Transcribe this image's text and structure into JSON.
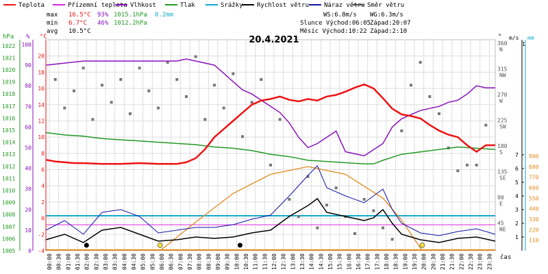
{
  "chart_data": {
    "type": "line",
    "title": "20.4.2021",
    "legend": [
      {
        "label": "Teplota",
        "color": "#ee1111"
      },
      {
        "label": "Přízemní teplota",
        "color": "#dd22dd"
      },
      {
        "label": "Vlhkost",
        "color": "#8811bb"
      },
      {
        "label": "Tlak",
        "color": "#229922"
      },
      {
        "label": "Srážky",
        "color": "#11aacc"
      },
      {
        "label": "Rychlost větru",
        "color": "#000000"
      },
      {
        "label": "Náraz větru",
        "color": "#1111aa"
      },
      {
        "label": "Směr větru",
        "color": "#555555"
      }
    ],
    "stats": {
      "max": {
        "label": "max",
        "temp": "16.5°C",
        "hum": "93%",
        "press": "1015.1hPa",
        "rain": "0.2mm"
      },
      "min": {
        "label": "min",
        "temp": "6.7°C",
        "hum": "46%",
        "press": "1012.2hPa"
      },
      "avg": {
        "label": "avg",
        "temp": "10.5°C"
      }
    },
    "info": {
      "ws": "WS:6.8m/s",
      "wg": "WG:6.3m/s",
      "sun": "Slunce Východ:06:05",
      "sun_set": "Západ:20:07",
      "moon": "Měsíc  Východ:10:22",
      "moon_set": "Západ:2:10"
    },
    "axes": {
      "hpa_label": "hPa",
      "pct_label": "%",
      "c_label": "°C",
      "deg_label": "°",
      "ms_label": "m/s",
      "mm_label": "mm",
      "x_label": "čas",
      "hpa_ticks": [
        "1022",
        "1021",
        "1020",
        "1019",
        "1018",
        "1017",
        "1016",
        "1015",
        "1014",
        "1013",
        "1012",
        "1011",
        "1010",
        "1009",
        "1008",
        "1007",
        "1006",
        "1005"
      ],
      "pct_ticks": [
        "100",
        "90",
        "80",
        "70",
        "60",
        "50",
        "40",
        "30",
        "20",
        "10",
        "0"
      ],
      "c_ticks": [
        "20",
        "18",
        "16",
        "14",
        "12",
        "10",
        "8",
        "6",
        "4",
        "2",
        "0",
        "-2",
        "-4"
      ],
      "dir_ticks": [
        {
          "v": 360,
          "deg": "360",
          "dir": "N"
        },
        {
          "v": 315,
          "deg": "315",
          "dir": "NW"
        },
        {
          "v": 270,
          "deg": "270",
          "dir": "W"
        },
        {
          "v": 225,
          "deg": "225",
          "dir": "SW"
        },
        {
          "v": 180,
          "deg": "180",
          "dir": "S"
        },
        {
          "v": 135,
          "deg": "135",
          "dir": "SE"
        },
        {
          "v": 90,
          "deg": "90",
          "dir": "E"
        },
        {
          "v": 45,
          "deg": "45",
          "dir": "NE"
        }
      ],
      "ms_ticks": [
        "7",
        "6",
        "5",
        "4",
        "3",
        "2",
        "1"
      ],
      "ms_top": "1",
      "solar_ticks": [
        "990",
        "880",
        "770",
        "660",
        "550",
        "440",
        "330",
        "220",
        "110"
      ],
      "time_ticks": [
        "00:00",
        "00:30",
        "01:00",
        "01:30",
        "02:00",
        "02:30",
        "03:00",
        "03:30",
        "04:00",
        "04:30",
        "05:00",
        "05:30",
        "06:00",
        "06:30",
        "07:00",
        "07:30",
        "08:00",
        "08:30",
        "09:00",
        "09:30",
        "10:00",
        "10:30",
        "11:00",
        "11:30",
        "12:00",
        "12:30",
        "13:00",
        "13:30",
        "14:00",
        "14:30",
        "15:00",
        "15:30",
        "16:00",
        "16:30",
        "17:00",
        "17:30",
        "18:00",
        "18:30",
        "19:00",
        "19:30",
        "20:00",
        "20:30",
        "21:00",
        "21:30",
        "22:00",
        "22:30",
        "23:00",
        "23:30"
      ]
    },
    "ranges": {
      "temp": [
        -4,
        22
      ],
      "humidity": [
        0,
        100
      ],
      "pressure": [
        1005,
        1022.5
      ],
      "wind": [
        0,
        7
      ],
      "direction": [
        0,
        360
      ],
      "solar": [
        0,
        990
      ],
      "hours": [
        0,
        24
      ]
    },
    "series": {
      "temperature": {
        "name": "Teplota",
        "unit": "°C",
        "points": [
          [
            0,
            7.2
          ],
          [
            0.5,
            7.0
          ],
          [
            1,
            6.9
          ],
          [
            1.5,
            6.8
          ],
          [
            2,
            6.8
          ],
          [
            3,
            6.7
          ],
          [
            4,
            6.7
          ],
          [
            5,
            6.8
          ],
          [
            6,
            6.7
          ],
          [
            7,
            6.7
          ],
          [
            7.5,
            6.9
          ],
          [
            8,
            7.4
          ],
          [
            8.5,
            8.5
          ],
          [
            9,
            10.0
          ],
          [
            9.5,
            11.0
          ],
          [
            10,
            12.0
          ],
          [
            10.5,
            13.0
          ],
          [
            11,
            14.0
          ],
          [
            11.5,
            14.5
          ],
          [
            12,
            14.7
          ],
          [
            12.5,
            15.0
          ],
          [
            13,
            14.6
          ],
          [
            13.5,
            14.4
          ],
          [
            14,
            14.7
          ],
          [
            14.5,
            14.5
          ],
          [
            15,
            15.0
          ],
          [
            15.5,
            15.2
          ],
          [
            16,
            15.6
          ],
          [
            16.5,
            16.1
          ],
          [
            17,
            16.5
          ],
          [
            17.5,
            16.0
          ],
          [
            18,
            14.8
          ],
          [
            18.5,
            13.5
          ],
          [
            19,
            12.8
          ],
          [
            19.5,
            12.6
          ],
          [
            20,
            12.3
          ],
          [
            20.5,
            11.5
          ],
          [
            21,
            10.8
          ],
          [
            21.5,
            10.3
          ],
          [
            22,
            10.0
          ],
          [
            22.5,
            9.0
          ],
          [
            23,
            8.2
          ],
          [
            23.5,
            9.0
          ],
          [
            24,
            9.0
          ]
        ]
      },
      "humidity": {
        "name": "Vlhkost",
        "unit": "%",
        "points": [
          [
            0,
            90
          ],
          [
            1,
            91
          ],
          [
            2,
            92
          ],
          [
            3,
            92
          ],
          [
            4,
            92
          ],
          [
            5,
            92
          ],
          [
            6,
            92
          ],
          [
            7,
            92
          ],
          [
            7.5,
            93
          ],
          [
            8,
            92
          ],
          [
            9,
            90
          ],
          [
            9.5,
            86
          ],
          [
            10,
            82
          ],
          [
            10.5,
            78
          ],
          [
            11,
            76
          ],
          [
            11.5,
            73
          ],
          [
            12,
            70
          ],
          [
            12.5,
            67
          ],
          [
            13,
            62
          ],
          [
            13.5,
            55
          ],
          [
            14,
            50
          ],
          [
            14.5,
            52
          ],
          [
            15,
            55
          ],
          [
            15.5,
            58
          ],
          [
            16,
            48
          ],
          [
            16.5,
            47
          ],
          [
            17,
            46
          ],
          [
            17.5,
            49
          ],
          [
            18,
            52
          ],
          [
            18.5,
            60
          ],
          [
            19,
            64
          ],
          [
            19.5,
            66
          ],
          [
            20,
            68
          ],
          [
            20.5,
            69
          ],
          [
            21,
            70
          ],
          [
            21.5,
            72
          ],
          [
            22,
            73
          ],
          [
            22.5,
            76
          ],
          [
            23,
            80
          ],
          [
            23.5,
            79
          ],
          [
            24,
            79
          ]
        ]
      },
      "pressure": {
        "name": "Tlak",
        "unit": "hPa",
        "points": [
          [
            0,
            1014.8
          ],
          [
            1,
            1014.6
          ],
          [
            2,
            1014.5
          ],
          [
            3,
            1014.3
          ],
          [
            4,
            1014.2
          ],
          [
            5,
            1014.1
          ],
          [
            6,
            1014.0
          ],
          [
            7,
            1013.9
          ],
          [
            8,
            1013.8
          ],
          [
            9,
            1013.6
          ],
          [
            10,
            1013.5
          ],
          [
            11,
            1013.3
          ],
          [
            12,
            1013.0
          ],
          [
            13,
            1012.8
          ],
          [
            14,
            1012.5
          ],
          [
            15,
            1012.4
          ],
          [
            16,
            1012.3
          ],
          [
            17,
            1012.2
          ],
          [
            17.5,
            1012.2
          ],
          [
            18,
            1012.5
          ],
          [
            19,
            1013.0
          ],
          [
            20,
            1013.2
          ],
          [
            21,
            1013.4
          ],
          [
            22,
            1013.6
          ],
          [
            23,
            1013.5
          ],
          [
            24,
            1013.4
          ]
        ]
      },
      "ground_temperature": {
        "name": "Přízemní teplota",
        "unit": "°C",
        "points": [
          [
            0,
            -0.8
          ],
          [
            24,
            -0.8
          ]
        ]
      },
      "precipitation": {
        "name": "Srážky",
        "unit": "mm",
        "points": [
          [
            0,
            0.2
          ],
          [
            24,
            0.2
          ]
        ]
      },
      "solar": {
        "points": [
          [
            6.1,
            0
          ],
          [
            8,
            300
          ],
          [
            10,
            600
          ],
          [
            12,
            800
          ],
          [
            14,
            880
          ],
          [
            16,
            800
          ],
          [
            18,
            550
          ],
          [
            19,
            320
          ],
          [
            20.1,
            0
          ]
        ]
      },
      "wind_speed": {
        "name": "Rychlost větru",
        "unit": "m/s",
        "points": [
          [
            0,
            0.8
          ],
          [
            1,
            1.2
          ],
          [
            2,
            0.6
          ],
          [
            3,
            1.5
          ],
          [
            4,
            1.7
          ],
          [
            5,
            1.2
          ],
          [
            6,
            0.7
          ],
          [
            7,
            0.8
          ],
          [
            8,
            1.0
          ],
          [
            9,
            0.9
          ],
          [
            10,
            1.0
          ],
          [
            11,
            1.3
          ],
          [
            12,
            1.5
          ],
          [
            13,
            2.5
          ],
          [
            14,
            3.3
          ],
          [
            14.5,
            3.8
          ],
          [
            15,
            2.8
          ],
          [
            16,
            2.5
          ],
          [
            17,
            2.2
          ],
          [
            17.5,
            2.4
          ],
          [
            18,
            3.0
          ],
          [
            18.5,
            2.0
          ],
          [
            19,
            1.2
          ],
          [
            20,
            0.8
          ],
          [
            21,
            0.6
          ],
          [
            22,
            0.9
          ],
          [
            23,
            1.0
          ],
          [
            24,
            0.7
          ]
        ]
      },
      "wind_gust": {
        "name": "Náraz větru",
        "unit": "m/s",
        "points": [
          [
            0,
            1.5
          ],
          [
            1,
            2.2
          ],
          [
            2,
            1.2
          ],
          [
            3,
            2.8
          ],
          [
            4,
            3.0
          ],
          [
            5,
            2.5
          ],
          [
            6,
            1.3
          ],
          [
            7,
            1.5
          ],
          [
            8,
            1.7
          ],
          [
            9,
            1.7
          ],
          [
            10,
            1.9
          ],
          [
            11,
            2.3
          ],
          [
            12,
            2.6
          ],
          [
            13,
            4.0
          ],
          [
            14,
            5.5
          ],
          [
            14.5,
            6.2
          ],
          [
            15,
            4.6
          ],
          [
            16,
            4.0
          ],
          [
            17,
            3.5
          ],
          [
            17.5,
            4.0
          ],
          [
            18,
            4.5
          ],
          [
            18.5,
            3.0
          ],
          [
            19,
            2.0
          ],
          [
            20,
            1.3
          ],
          [
            21,
            1.1
          ],
          [
            22,
            1.4
          ],
          [
            23,
            1.6
          ],
          [
            24,
            1.2
          ]
        ]
      },
      "wind_direction": {
        "name": "Směr větru",
        "unit": "°",
        "points": [
          [
            0.5,
            300
          ],
          [
            1,
            250
          ],
          [
            1.5,
            280
          ],
          [
            2,
            320
          ],
          [
            2.5,
            230
          ],
          [
            3,
            290
          ],
          [
            3.5,
            260
          ],
          [
            4,
            300
          ],
          [
            4.5,
            240
          ],
          [
            5,
            320
          ],
          [
            5.5,
            280
          ],
          [
            6,
            250
          ],
          [
            6.5,
            330
          ],
          [
            7,
            300
          ],
          [
            7.5,
            270
          ],
          [
            8,
            340
          ],
          [
            8.5,
            230
          ],
          [
            9,
            290
          ],
          [
            9.5,
            250
          ],
          [
            10,
            310
          ],
          [
            10.5,
            200
          ],
          [
            11,
            260
          ],
          [
            11.5,
            300
          ],
          [
            12,
            150
          ],
          [
            12.5,
            230
          ],
          [
            13,
            90
          ],
          [
            13.5,
            60
          ],
          [
            14,
            130
          ],
          [
            14.5,
            40
          ],
          [
            15,
            80
          ],
          [
            15.5,
            110
          ],
          [
            16,
            60
          ],
          [
            16.5,
            30
          ],
          [
            17,
            90
          ],
          [
            17.5,
            70
          ],
          [
            18,
            40
          ],
          [
            18.5,
            20
          ],
          [
            19,
            210
          ],
          [
            19.5,
            290
          ],
          [
            20,
            330
          ],
          [
            20.5,
            270
          ],
          [
            21,
            240
          ],
          [
            21.5,
            180
          ],
          [
            22,
            140
          ],
          [
            22.5,
            150
          ],
          [
            23,
            150
          ],
          [
            23.5,
            220
          ]
        ]
      }
    },
    "markers": {
      "sunrise": 6.1,
      "sunset": 20.1,
      "moonrise": 10.37,
      "moonset": 2.17
    }
  }
}
